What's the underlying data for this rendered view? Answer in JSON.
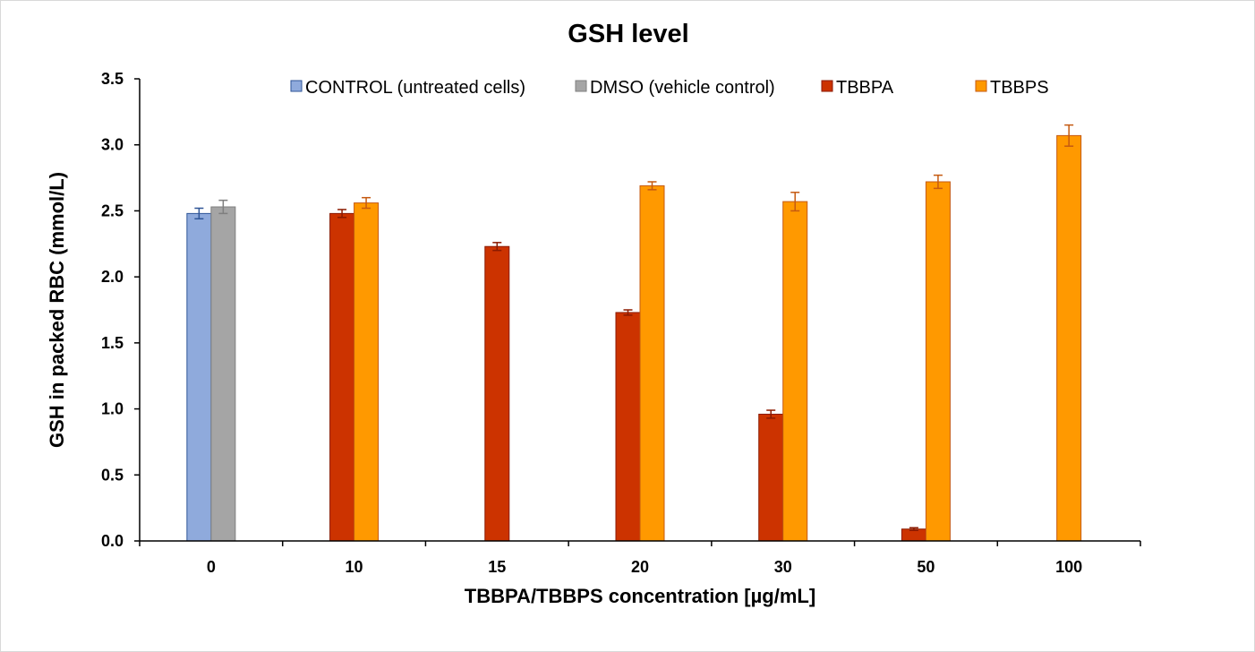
{
  "chart_data": {
    "type": "bar",
    "title": "GSH level",
    "xlabel": "TBBPA/TBBPS concentration [µg/mL]",
    "ylabel": "GSH in packed RBC (mmol/L)",
    "ylim": [
      0,
      3.5
    ],
    "yticks": [
      "0.0",
      "0.5",
      "1.0",
      "1.5",
      "2.0",
      "2.5",
      "3.0",
      "3.5"
    ],
    "grid": false,
    "legend": "top",
    "categories": [
      "0",
      "10",
      "15",
      "20",
      "30",
      "50",
      "100"
    ],
    "series": [
      {
        "name": "CONTROL (untreated cells)",
        "color": "#8faadc",
        "edge": "#2f5597",
        "values": [
          2.48,
          null,
          null,
          null,
          null,
          null,
          null
        ],
        "errors": [
          0.04,
          null,
          null,
          null,
          null,
          null,
          null
        ]
      },
      {
        "name": "DMSO (vehicle control)",
        "color": "#a5a5a5",
        "edge": "#7f7f7f",
        "values": [
          2.53,
          null,
          null,
          null,
          null,
          null,
          null
        ],
        "errors": [
          0.05,
          null,
          null,
          null,
          null,
          null,
          null
        ]
      },
      {
        "name": "TBBPA",
        "color": "#cc3300",
        "edge": "#8b1a00",
        "values": [
          null,
          2.48,
          2.23,
          1.73,
          0.96,
          0.09,
          null
        ],
        "errors": [
          null,
          0.03,
          0.03,
          0.02,
          0.03,
          0.01,
          null
        ]
      },
      {
        "name": "TBBPS",
        "color": "#ff9900",
        "edge": "#c55a11",
        "values": [
          null,
          2.56,
          null,
          2.69,
          2.57,
          2.72,
          3.07
        ],
        "errors": [
          null,
          0.04,
          null,
          0.03,
          0.07,
          0.05,
          0.08
        ]
      }
    ]
  }
}
